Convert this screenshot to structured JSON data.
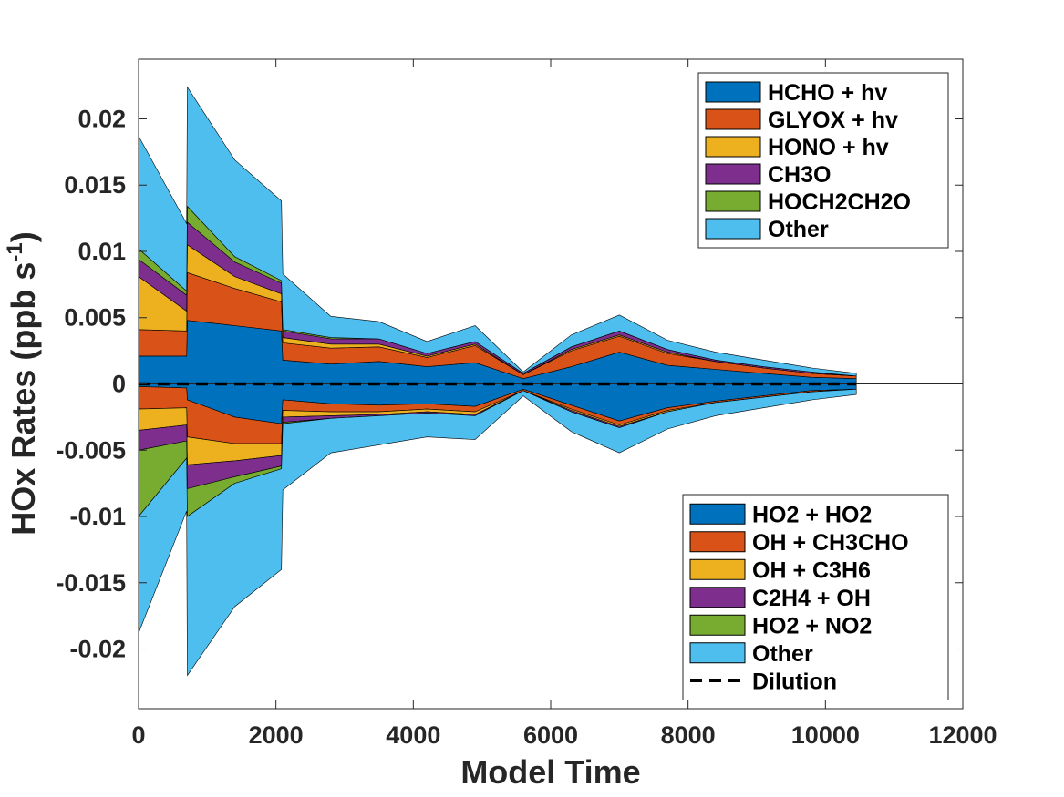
{
  "chart_data": {
    "type": "area",
    "title": "",
    "xlabel": "Model Time",
    "ylabel": "HOx Rates (ppb s",
    "ylabel_sup": "-1",
    "ylabel_close": ")",
    "xlim": [
      0,
      12000
    ],
    "ylim": [
      -0.0245,
      0.0245
    ],
    "x_ticks": [
      0,
      2000,
      4000,
      6000,
      8000,
      10000,
      12000
    ],
    "x_tick_labels": [
      "0",
      "2000",
      "4000",
      "6000",
      "8000",
      "10000",
      "12000"
    ],
    "y_ticks": [
      0.02,
      0.015,
      0.01,
      0.005,
      0,
      -0.005,
      -0.01,
      -0.015,
      -0.02
    ],
    "y_tick_labels": [
      "0.02",
      "0.015",
      "0.01",
      "0.005",
      "0",
      "-0.005",
      "-0.01",
      "-0.015",
      "-0.02"
    ],
    "grid": false,
    "colors": [
      "#0072BD",
      "#D95319",
      "#EDB120",
      "#7E2F8E",
      "#77AC30",
      "#4DBEEE"
    ],
    "production": {
      "legend_position": "top-right",
      "series": [
        {
          "name": "HCHO + hv",
          "color": "#0072BD",
          "x": [
            0,
            700,
            710,
            1400,
            2080,
            2100,
            2800,
            3500,
            4200,
            4900,
            5600,
            6300,
            7000,
            7700,
            8400,
            9100,
            9800,
            10450
          ],
          "values": [
            0.0021,
            0.0021,
            0.0048,
            0.0044,
            0.004,
            0.0018,
            0.0015,
            0.0017,
            0.0013,
            0.0016,
            0.0004,
            0.0013,
            0.0024,
            0.0014,
            0.0011,
            0.0008,
            0.0005,
            0.0004
          ]
        },
        {
          "name": "GLYOX + hv",
          "color": "#D95319",
          "x": [
            0,
            700,
            710,
            1400,
            2080,
            2100,
            2800,
            3500,
            4200,
            4900,
            5600,
            6300,
            7000,
            7700,
            8400,
            9100,
            9800,
            10450
          ],
          "values": [
            0.002,
            0.0019,
            0.0036,
            0.0028,
            0.0022,
            0.0013,
            0.0012,
            0.0011,
            0.0007,
            0.0013,
            0.0003,
            0.0012,
            0.0012,
            0.0009,
            0.0006,
            0.0004,
            0.0003,
            0.0002
          ]
        },
        {
          "name": "HONO + hv",
          "color": "#EDB120",
          "x": [
            0,
            700,
            710,
            1400,
            2080,
            2100,
            2800,
            3500,
            4200,
            4900,
            5600,
            6300,
            7000,
            7700,
            8400,
            9100,
            9800,
            10450
          ],
          "values": [
            0.004,
            0.0015,
            0.0021,
            0.0009,
            0.0006,
            0.0004,
            0.0003,
            0.0002,
            0.0001,
            0.0001,
            0.0,
            0.0001,
            0.0001,
            0.0001,
            0.0,
            0.0,
            0.0,
            0.0
          ]
        },
        {
          "name": "CH3O",
          "color": "#7E2F8E",
          "x": [
            0,
            700,
            710,
            1400,
            2080,
            2100,
            2800,
            3500,
            4200,
            4900,
            5600,
            6300,
            7000,
            7700,
            8400,
            9100,
            9800,
            10450
          ],
          "values": [
            0.0013,
            0.0012,
            0.0017,
            0.0011,
            0.0008,
            0.0005,
            0.0004,
            0.0004,
            0.0002,
            0.0002,
            0.0001,
            0.0002,
            0.0003,
            0.0002,
            0.0001,
            0.0001,
            0.0001,
            0.0
          ]
        },
        {
          "name": "HOCH2CH2O",
          "color": "#77AC30",
          "x": [
            0,
            700,
            710,
            1400,
            2080,
            2100,
            2800,
            3500,
            4200,
            4900,
            5600,
            6300,
            7000,
            7700,
            8400,
            9100,
            9800,
            10450
          ],
          "values": [
            0.0008,
            0.0003,
            0.0012,
            0.0004,
            0.0002,
            0.0001,
            0.0001,
            0.0,
            0.0,
            0.0,
            0.0,
            0.0,
            0.0,
            0.0,
            0.0,
            0.0,
            0.0,
            0.0
          ]
        },
        {
          "name": "Other",
          "color": "#4DBEEE",
          "x": [
            0,
            700,
            710,
            1400,
            2080,
            2100,
            2800,
            3500,
            4200,
            4900,
            5600,
            6300,
            7000,
            7700,
            8400,
            9100,
            9800,
            10450
          ],
          "values": [
            0.0085,
            0.0051,
            0.009,
            0.0073,
            0.006,
            0.0042,
            0.0016,
            0.0013,
            0.0009,
            0.0012,
            0.0001,
            0.0009,
            0.0012,
            0.0007,
            0.0006,
            0.0005,
            0.0003,
            0.0002
          ]
        }
      ]
    },
    "loss": {
      "legend_position": "bottom-right",
      "series": [
        {
          "name": "HO2 + HO2",
          "color": "#0072BD",
          "x": [
            0,
            700,
            710,
            1400,
            2080,
            2100,
            2800,
            3500,
            4200,
            4900,
            5600,
            6300,
            7000,
            7700,
            8400,
            9100,
            9800,
            10450
          ],
          "values": [
            -0.0002,
            -0.0003,
            -0.0012,
            -0.0025,
            -0.003,
            -0.0012,
            -0.0015,
            -0.0016,
            -0.0015,
            -0.0017,
            -0.0004,
            -0.0016,
            -0.0028,
            -0.0018,
            -0.0013,
            -0.0009,
            -0.0005,
            -0.0004
          ]
        },
        {
          "name": "OH + CH3CHO",
          "color": "#D95319",
          "x": [
            0,
            700,
            710,
            1400,
            2080,
            2100,
            2800,
            3500,
            4200,
            4900,
            5600,
            6300,
            7000,
            7700,
            8400,
            9100,
            9800,
            10450
          ],
          "values": [
            -0.0017,
            -0.0015,
            -0.0028,
            -0.002,
            -0.0015,
            -0.0008,
            -0.0006,
            -0.0005,
            -0.0004,
            -0.0004,
            -0.0001,
            -0.0003,
            -0.0003,
            -0.0002,
            -0.0001,
            -0.0001,
            -0.0001,
            -0.0
          ]
        },
        {
          "name": "OH + C3H6",
          "color": "#EDB120",
          "x": [
            0,
            700,
            710,
            1400,
            2080,
            2100,
            2800,
            3500,
            4200,
            4900,
            5600,
            6300,
            7000,
            7700,
            8400,
            9100,
            9800,
            10450
          ],
          "values": [
            -0.0016,
            -0.0013,
            -0.0021,
            -0.0013,
            -0.0009,
            -0.0005,
            -0.0003,
            -0.0002,
            -0.0002,
            -0.0002,
            -0.0,
            -0.0001,
            -0.0001,
            -0.0001,
            -0.0,
            -0.0,
            -0.0,
            -0.0
          ]
        },
        {
          "name": "C2H4 + OH",
          "color": "#7E2F8E",
          "x": [
            0,
            700,
            710,
            1400,
            2080,
            2100,
            2800,
            3500,
            4200,
            4900,
            5600,
            6300,
            7000,
            7700,
            8400,
            9100,
            9800,
            10450
          ],
          "values": [
            -0.0015,
            -0.0012,
            -0.0018,
            -0.0012,
            -0.0008,
            -0.0004,
            -0.0002,
            -0.0001,
            -0.0001,
            -0.0001,
            -0.0,
            -0.0001,
            -0.0001,
            -0.0,
            -0.0,
            -0.0,
            -0.0,
            -0.0
          ]
        },
        {
          "name": "HO2 + NO2",
          "color": "#77AC30",
          "x": [
            0,
            700,
            710,
            1400,
            2080,
            2100,
            2800,
            3500,
            4200,
            4900,
            5600,
            6300,
            7000,
            7700,
            8400,
            9100,
            9800,
            10450
          ],
          "values": [
            -0.005,
            -0.0013,
            -0.0021,
            -0.0005,
            -0.0002,
            -0.0001,
            -0.0,
            -0.0,
            -0.0,
            -0.0,
            -0.0,
            -0.0,
            -0.0,
            -0.0,
            -0.0,
            -0.0,
            -0.0,
            -0.0
          ]
        },
        {
          "name": "Other",
          "color": "#4DBEEE",
          "x": [
            0,
            700,
            710,
            1400,
            2080,
            2100,
            2800,
            3500,
            4200,
            4900,
            5600,
            6300,
            7000,
            7700,
            8400,
            9100,
            9800,
            10450
          ],
          "values": [
            -0.0088,
            -0.004,
            -0.012,
            -0.0093,
            -0.0076,
            -0.005,
            -0.0026,
            -0.0022,
            -0.0018,
            -0.0018,
            -0.0004,
            -0.0015,
            -0.0019,
            -0.0013,
            -0.001,
            -0.0008,
            -0.0006,
            -0.0004
          ]
        }
      ]
    },
    "dilution": {
      "name": "Dilution",
      "style": "dashed",
      "color": "#000000",
      "x": [
        0,
        10450
      ],
      "values": [
        0,
        0
      ]
    }
  }
}
